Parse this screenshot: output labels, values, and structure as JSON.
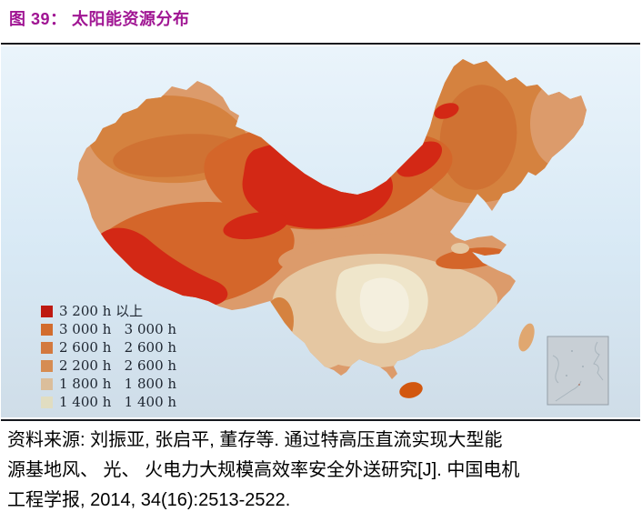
{
  "title": {
    "text": "图 39： 太阳能资源分布"
  },
  "map": {
    "sea": {
      "top": "#EAF4FB",
      "mid": "#D8E9F5",
      "bottom": "#CFDDE8"
    },
    "colors": {
      "band_red": "#D32815",
      "band_dark_orange": "#D4662A",
      "band_mid_orange": "#D5823F",
      "band_mid_orange2": "#D07233",
      "band_salmon": "#DC9B6B",
      "band_tan": "#E5C7A2",
      "band_cream": "#EFE6CB",
      "band_pale": "#F4EFDE",
      "hainan": "#D2570F",
      "taiwan": "#E0A770",
      "inset_bg": "#C8CFD5",
      "inset_border": "#939EA6",
      "inset_line": "#A9B5BD"
    },
    "legend": {
      "rows": [
        {
          "color": "#BE1911",
          "label": "3 200 h 以上"
        },
        {
          "color": "#D26C2E",
          "label": "3 000 h   3 000 h"
        },
        {
          "color": "#D3793F",
          "label": "2 600 h   2 600 h"
        },
        {
          "color": "#D68C52",
          "label": "2 200 h   2 600 h"
        },
        {
          "color": "#DBBE9B",
          "label": "1 800 h   1 800 h"
        },
        {
          "color": "#E1DDC1",
          "label": "1 400 h   1 400 h"
        }
      ]
    }
  },
  "source": {
    "lines": [
      "资料来源: 刘振亚, 张启平, 董存等. 通过特高压直流实现大型能",
      "源基地风、 光、 火电力大规模高效率安全外送研究[J]. 中国电机",
      "工程学报, 2014, 34(16):2513-2522."
    ]
  }
}
